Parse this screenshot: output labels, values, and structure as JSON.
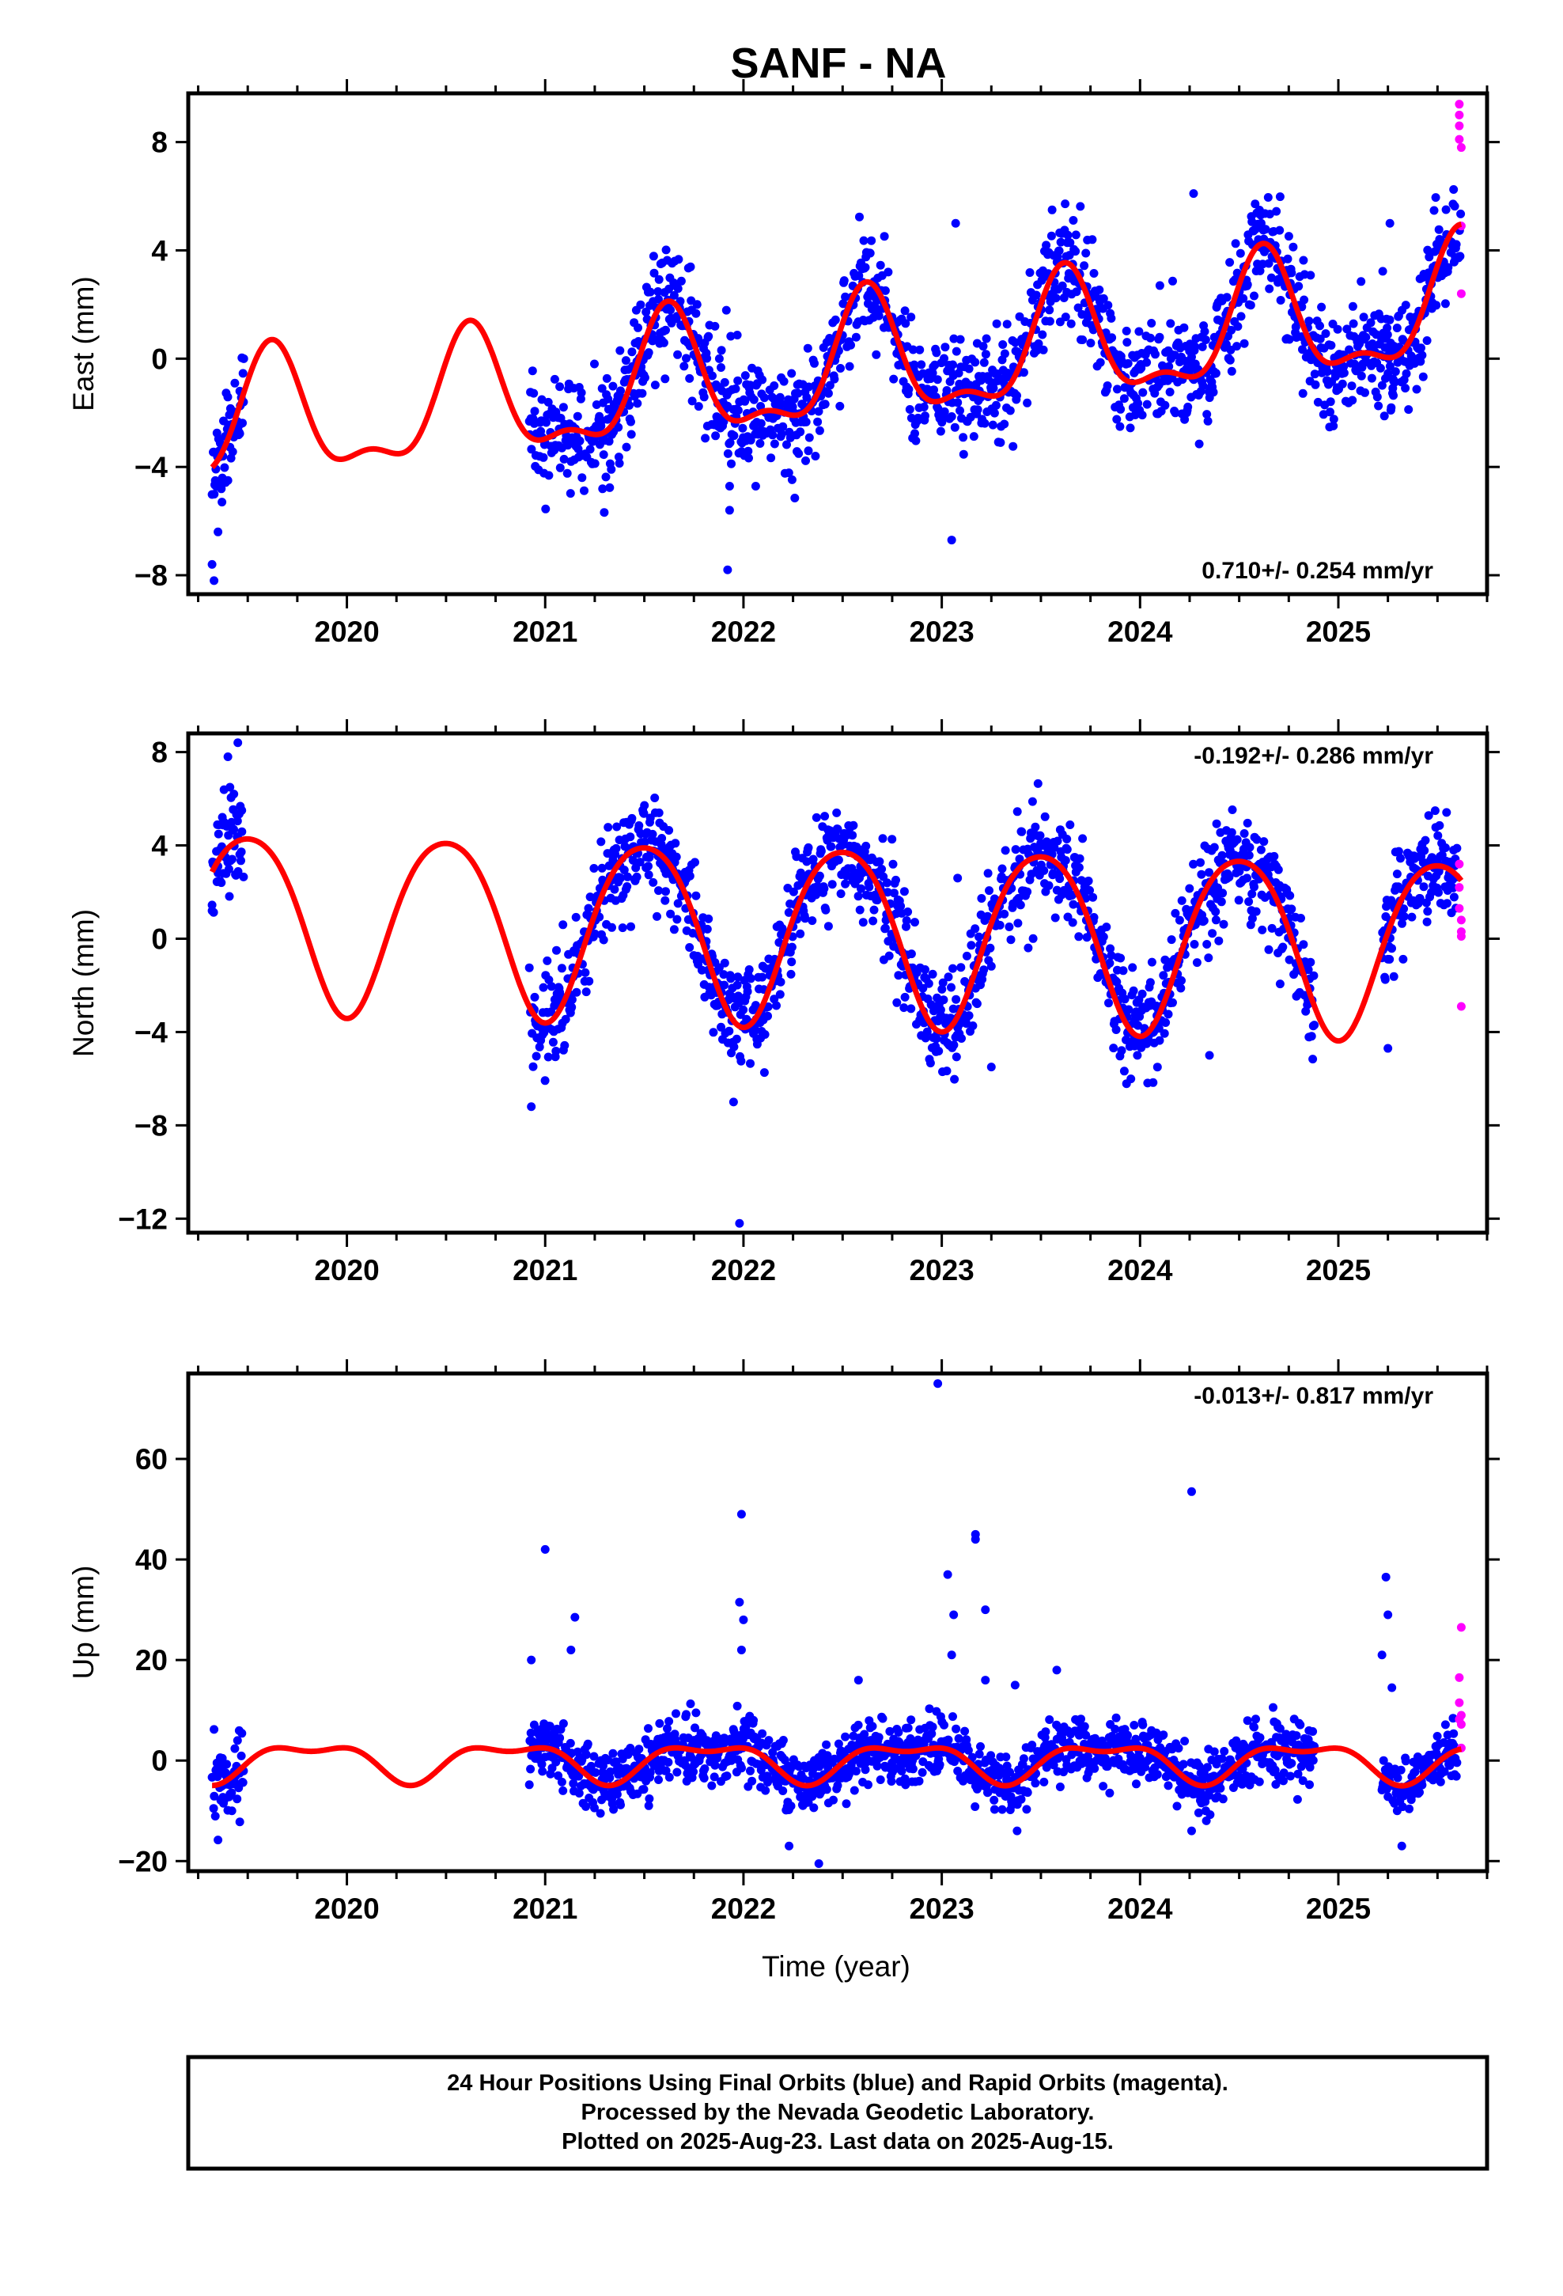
{
  "title": "SANF - NA",
  "xlabel": "Time (year)",
  "footer": {
    "line1": "24 Hour Positions Using Final Orbits (blue) and Rapid Orbits (magenta).",
    "line2": "Processed by the Nevada Geodetic Laboratory.",
    "line3": "Plotted on 2025-Aug-23. Last data on 2025-Aug-15."
  },
  "colors": {
    "final": "#0000ff",
    "rapid": "#ff00ff",
    "model": "#ff0000",
    "axis": "#000000"
  },
  "chart_data": [
    {
      "type": "scatter",
      "component": "east",
      "ylabel": "East (mm)",
      "rate": "0.710+/- 0.254 mm/yr",
      "xlim": [
        2019.2,
        2025.75
      ],
      "ylim": [
        -8.7,
        9.8
      ],
      "xticks": [
        2020,
        2021,
        2022,
        2023,
        2024,
        2025
      ],
      "yticks": [
        -8,
        -4,
        0,
        4,
        8
      ],
      "data_segments": [
        [
          2019.32,
          2019.48
        ],
        [
          2020.92,
          2025.28
        ],
        [
          2025.25,
          2025.62
        ]
      ],
      "model": {
        "offset": -0.35,
        "trend": 0.71,
        "annual_amp": 2.2,
        "annual_peak": 2020.62,
        "semi_amp": 0.9,
        "semi_peak": 2020.12
      },
      "noise_sd": 1.05,
      "seed": 11,
      "early_points": [
        {
          "x": 2019.32,
          "y": -7.6
        },
        {
          "x": 2019.33,
          "y": -8.2
        },
        {
          "x": 2019.35,
          "y": -6.4
        },
        {
          "x": 2019.37,
          "y": -5.3
        },
        {
          "x": 2019.4,
          "y": -4.5
        },
        {
          "x": 2019.43,
          "y": -2.9
        },
        {
          "x": 2019.46,
          "y": -1.2
        },
        {
          "x": 2019.48,
          "y": 0.0
        }
      ],
      "outliers": [
        {
          "x": 2021.92,
          "y": -7.8
        },
        {
          "x": 2021.93,
          "y": -5.6
        },
        {
          "x": 2023.05,
          "y": -6.7
        },
        {
          "x": 2023.07,
          "y": 5.0
        },
        {
          "x": 2024.27,
          "y": 6.1
        },
        {
          "x": 2025.26,
          "y": 5.0
        },
        {
          "x": 2024.1,
          "y": 2.7
        }
      ],
      "rapid_points": [
        {
          "x": 2025.61,
          "y": 9.4
        },
        {
          "x": 2025.61,
          "y": 9.0
        },
        {
          "x": 2025.61,
          "y": 8.6
        },
        {
          "x": 2025.61,
          "y": 8.1
        },
        {
          "x": 2025.62,
          "y": 7.8
        },
        {
          "x": 2025.62,
          "y": 4.9
        },
        {
          "x": 2025.62,
          "y": 2.4
        }
      ]
    },
    {
      "type": "scatter",
      "component": "north",
      "ylabel": "North (mm)",
      "rate": "-0.192+/- 0.286 mm/yr",
      "xlim": [
        2019.2,
        2025.75
      ],
      "ylim": [
        -12.6,
        8.8
      ],
      "xticks": [
        2020,
        2021,
        2022,
        2023,
        2024,
        2025
      ],
      "yticks": [
        -12,
        -8,
        -4,
        0,
        4,
        8
      ],
      "data_segments": [
        [
          2019.32,
          2019.48
        ],
        [
          2020.92,
          2024.88
        ],
        [
          2025.22,
          2025.6
        ]
      ],
      "model": {
        "offset": 0.35,
        "trend": -0.192,
        "annual_amp": 3.8,
        "annual_peak": 2020.5,
        "semi_amp": 0.45,
        "semi_peak": 2020.25
      },
      "noise_sd": 1.1,
      "seed": 23,
      "early_points": [
        {
          "x": 2019.32,
          "y": 1.2
        },
        {
          "x": 2019.35,
          "y": 3.1
        },
        {
          "x": 2019.38,
          "y": 5.0
        },
        {
          "x": 2019.4,
          "y": 7.8
        },
        {
          "x": 2019.43,
          "y": 6.2
        },
        {
          "x": 2019.45,
          "y": 8.4
        },
        {
          "x": 2019.47,
          "y": 5.5
        }
      ],
      "outliers": [
        {
          "x": 2021.98,
          "y": -12.2
        },
        {
          "x": 2021.95,
          "y": -7.0
        },
        {
          "x": 2020.93,
          "y": -7.2
        },
        {
          "x": 2025.25,
          "y": -4.7
        },
        {
          "x": 2023.25,
          "y": -5.5
        },
        {
          "x": 2023.08,
          "y": 2.6
        },
        {
          "x": 2024.35,
          "y": -5.0
        }
      ],
      "rapid_points": [
        {
          "x": 2025.61,
          "y": 3.2
        },
        {
          "x": 2025.61,
          "y": 2.2
        },
        {
          "x": 2025.61,
          "y": 1.3
        },
        {
          "x": 2025.62,
          "y": 0.8
        },
        {
          "x": 2025.62,
          "y": 0.3
        },
        {
          "x": 2025.62,
          "y": 0.1
        },
        {
          "x": 2025.62,
          "y": -2.9
        }
      ]
    },
    {
      "type": "scatter",
      "component": "up",
      "ylabel": "Up (mm)",
      "rate": "-0.013+/- 0.817 mm/yr",
      "xlim": [
        2019.2,
        2025.75
      ],
      "ylim": [
        -22,
        77
      ],
      "xticks": [
        2020,
        2021,
        2022,
        2023,
        2024,
        2025
      ],
      "yticks": [
        -20,
        0,
        20,
        40,
        60
      ],
      "data_segments": [
        [
          2019.32,
          2019.48
        ],
        [
          2020.92,
          2024.88
        ],
        [
          2025.22,
          2025.6
        ]
      ],
      "model": {
        "offset": 0.0,
        "trend": -0.013,
        "annual_amp": 3.4,
        "annual_peak": 2020.82,
        "semi_amp": 1.6,
        "semi_peak": 2020.57
      },
      "noise_sd": 3.0,
      "seed": 37,
      "early_points": [
        {
          "x": 2019.33,
          "y": 6.2
        },
        {
          "x": 2019.35,
          "y": -15.8
        },
        {
          "x": 2019.38,
          "y": -8.0
        },
        {
          "x": 2019.42,
          "y": -10.0
        },
        {
          "x": 2019.46,
          "y": -12.2
        }
      ],
      "outliers": [
        {
          "x": 2022.98,
          "y": 75.0
        },
        {
          "x": 2021.0,
          "y": 42.0
        },
        {
          "x": 2021.99,
          "y": 49.0
        },
        {
          "x": 2023.17,
          "y": 44.0
        },
        {
          "x": 2023.17,
          "y": 45.0
        },
        {
          "x": 2024.26,
          "y": 53.5
        },
        {
          "x": 2025.24,
          "y": 36.5
        },
        {
          "x": 2025.25,
          "y": 29.0
        },
        {
          "x": 2025.22,
          "y": 21.0
        },
        {
          "x": 2025.27,
          "y": 14.5
        },
        {
          "x": 2023.03,
          "y": 37.0
        },
        {
          "x": 2023.06,
          "y": 29.0
        },
        {
          "x": 2023.22,
          "y": 30.0
        },
        {
          "x": 2023.05,
          "y": 21.0
        },
        {
          "x": 2021.15,
          "y": 28.5
        },
        {
          "x": 2021.13,
          "y": 22.0
        },
        {
          "x": 2020.93,
          "y": 20.0
        },
        {
          "x": 2021.98,
          "y": 31.5
        },
        {
          "x": 2022.0,
          "y": 28.0
        },
        {
          "x": 2021.99,
          "y": 22.0
        },
        {
          "x": 2023.22,
          "y": 16.0
        },
        {
          "x": 2023.37,
          "y": 15.0
        },
        {
          "x": 2023.58,
          "y": 18.0
        },
        {
          "x": 2022.58,
          "y": 16.0
        },
        {
          "x": 2022.38,
          "y": -20.5
        },
        {
          "x": 2022.23,
          "y": -17.0
        },
        {
          "x": 2025.32,
          "y": -17.0
        },
        {
          "x": 2023.38,
          "y": -14.0
        },
        {
          "x": 2024.26,
          "y": -14.0
        }
      ],
      "rapid_points": [
        {
          "x": 2025.62,
          "y": 26.5
        },
        {
          "x": 2025.61,
          "y": 16.5
        },
        {
          "x": 2025.61,
          "y": 11.5
        },
        {
          "x": 2025.62,
          "y": 9.0
        },
        {
          "x": 2025.61,
          "y": 8.2
        },
        {
          "x": 2025.62,
          "y": 7.2
        },
        {
          "x": 2025.62,
          "y": 2.5
        }
      ]
    }
  ]
}
